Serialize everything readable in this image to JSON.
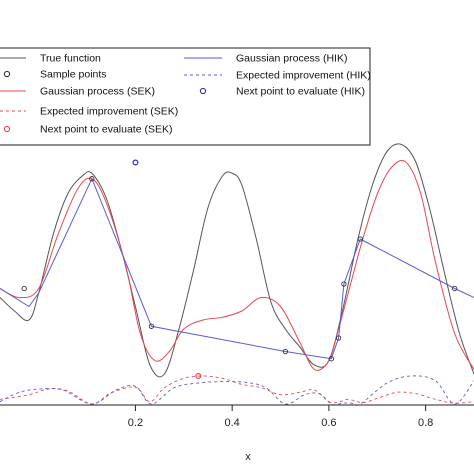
{
  "chart_data": {
    "type": "line",
    "xlabel": "x",
    "xlim": [
      -0.08,
      0.9
    ],
    "ylim": [
      -1.25,
      1.55
    ],
    "ei_ylim": [
      0,
      0.9
    ],
    "x_ticks": [
      0.2,
      0.4,
      0.6,
      0.8
    ],
    "x_tick_labels": [
      "0.2",
      "0.4",
      "0.6",
      "0.8"
    ],
    "legend": {
      "position": "top",
      "entries": [
        {
          "label": "True function",
          "color": "#555555",
          "style": "solid",
          "marker": "none"
        },
        {
          "label": "Sample points",
          "color": "#333333",
          "style": "none",
          "marker": "circle"
        },
        {
          "label": "Gaussian process (SEK)",
          "color": "#e8474f",
          "style": "solid",
          "marker": "none"
        },
        {
          "label": "Expected improvement (SEK)",
          "color": "#e8474f",
          "style": "dashed",
          "marker": "none"
        },
        {
          "label": "Next point to evaluate (SEK)",
          "color": "#e8474f",
          "style": "none",
          "marker": "circle"
        },
        {
          "label": "Gaussian process (HIK)",
          "color": "#5a5adc",
          "style": "solid",
          "marker": "none"
        },
        {
          "label": "Expected improvement (HIK)",
          "color": "#5a5adc",
          "style": "dashed",
          "marker": "none"
        },
        {
          "label": "Next point to evaluate (HIK)",
          "color": "#2f2fb0",
          "style": "none",
          "marker": "circle"
        }
      ]
    },
    "series": [
      {
        "name": "True function",
        "color": "#555555",
        "dash": "",
        "x": [
          -0.08,
          -0.05,
          -0.02,
          0.0,
          0.03,
          0.06,
          0.09,
          0.11,
          0.14,
          0.17,
          0.2,
          0.23,
          0.26,
          0.29,
          0.32,
          0.35,
          0.38,
          0.4,
          0.42,
          0.45,
          0.48,
          0.51,
          0.54,
          0.57,
          0.6,
          0.63,
          0.66,
          0.69,
          0.72,
          0.75,
          0.78,
          0.81,
          0.84,
          0.87,
          0.9
        ],
        "y": [
          -0.2,
          -0.35,
          -0.45,
          -0.15,
          0.5,
          0.95,
          1.15,
          1.18,
          0.9,
          0.35,
          -0.3,
          -0.95,
          -1.05,
          -0.55,
          0.1,
          0.8,
          1.15,
          1.18,
          1.05,
          0.45,
          -0.25,
          -0.55,
          -0.75,
          -0.95,
          -0.9,
          -0.3,
          0.45,
          1.05,
          1.42,
          1.5,
          1.3,
          0.75,
          0.05,
          -0.6,
          -1.05
        ]
      },
      {
        "name": "Gaussian process (SEK)",
        "color": "#e8474f",
        "dash": "",
        "x": [
          -0.08,
          -0.04,
          0.0,
          0.04,
          0.08,
          0.11,
          0.14,
          0.18,
          0.21,
          0.24,
          0.27,
          0.3,
          0.34,
          0.38,
          0.42,
          0.46,
          0.5,
          0.54,
          0.57,
          0.6,
          0.62,
          0.64,
          0.67,
          0.7,
          0.73,
          0.76,
          0.79,
          0.82,
          0.86,
          0.9
        ],
        "y": [
          -0.1,
          -0.2,
          -0.1,
          0.5,
          1.0,
          1.12,
          0.85,
          0.15,
          -0.6,
          -0.9,
          -0.8,
          -0.55,
          -0.45,
          -0.42,
          -0.35,
          -0.2,
          -0.3,
          -0.7,
          -1.0,
          -0.9,
          -0.55,
          -0.15,
          0.45,
          0.95,
          1.25,
          1.3,
          0.95,
          0.2,
          -0.6,
          -1.0
        ]
      },
      {
        "name": "Gaussian process (HIK)",
        "color": "#5a5adc",
        "dash": "",
        "x": [
          -0.08,
          -0.02,
          0.0,
          0.11,
          0.233,
          0.51,
          0.605,
          0.62,
          0.631,
          0.665,
          0.86,
          0.9
        ],
        "y": [
          -0.1,
          -0.3,
          -0.15,
          1.12,
          -0.52,
          -0.8,
          -0.88,
          -0.65,
          -0.05,
          0.45,
          -0.1,
          -0.2
        ]
      },
      {
        "name": "Expected improvement (SEK)",
        "color": "#e8474f",
        "dash": "3,3",
        "axis": "ei",
        "x": [
          -0.08,
          -0.02,
          0.02,
          0.06,
          0.11,
          0.15,
          0.2,
          0.23,
          0.26,
          0.3,
          0.34,
          0.38,
          0.42,
          0.46,
          0.5,
          0.54,
          0.57,
          0.6,
          0.62,
          0.64,
          0.67,
          0.7,
          0.74,
          0.78,
          0.82,
          0.86,
          0.9
        ],
        "y": [
          0.1,
          0.2,
          0.32,
          0.28,
          0.0,
          0.24,
          0.36,
          0.05,
          0.35,
          0.55,
          0.6,
          0.55,
          0.42,
          0.35,
          0.2,
          0.25,
          0.3,
          0.05,
          0.04,
          0.1,
          0.03,
          0.12,
          0.25,
          0.22,
          0.1,
          0.02,
          0.05
        ]
      },
      {
        "name": "Expected improvement (HIK)",
        "color": "#5a5adc",
        "dash": "3,3",
        "axis": "ei",
        "x": [
          -0.08,
          -0.04,
          0.0,
          0.05,
          0.11,
          0.16,
          0.2,
          0.233,
          0.28,
          0.33,
          0.38,
          0.43,
          0.47,
          0.51,
          0.55,
          0.58,
          0.605,
          0.62,
          0.631,
          0.645,
          0.665,
          0.72,
          0.77,
          0.82,
          0.86,
          0.9
        ],
        "y": [
          0.05,
          0.25,
          0.32,
          0.3,
          0.0,
          0.3,
          0.38,
          0.0,
          0.35,
          0.45,
          0.48,
          0.46,
          0.35,
          0.0,
          0.2,
          0.22,
          0.0,
          0.0,
          0.02,
          0.02,
          0.0,
          0.45,
          0.6,
          0.5,
          0.0,
          0.5
        ]
      }
    ],
    "sample_points": {
      "x": [
        -0.03,
        0.11,
        0.233,
        0.51,
        0.605,
        0.62,
        0.631,
        0.665,
        0.86
      ],
      "y": [
        -0.1,
        1.12,
        -0.52,
        -0.8,
        -0.88,
        -0.65,
        -0.05,
        0.45,
        -0.1
      ]
    },
    "next_point_sek": {
      "x": 0.33,
      "y": 0.6
    },
    "next_point_hik": {
      "x": 0.2,
      "y": 1.3
    }
  }
}
